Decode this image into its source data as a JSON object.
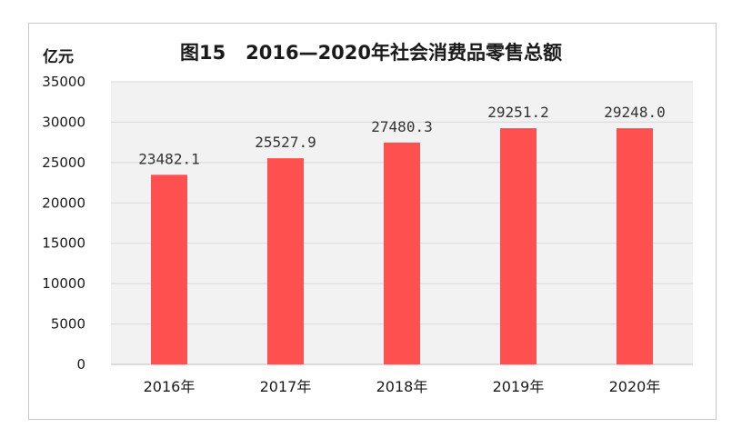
{
  "chart_data": {
    "type": "bar",
    "title": "图15   2016—2020年社会消费品零售总额",
    "unit_label": "亿元",
    "categories": [
      "2016年",
      "2017年",
      "2018年",
      "2019年",
      "2020年"
    ],
    "values": [
      23482.1,
      25527.9,
      27480.3,
      29251.2,
      29248.0
    ],
    "value_labels": [
      "23482.1",
      "25527.9",
      "27480.3",
      "29251.2",
      "29248.0"
    ],
    "y_ticks": [
      "0",
      "5000",
      "10000",
      "15000",
      "20000",
      "25000",
      "30000",
      "35000"
    ],
    "ylim": [
      0,
      35000
    ],
    "grid": true,
    "legend": "none",
    "bar_color": "#ff5050",
    "plot_background": "#f2f2f2",
    "grid_color": "#d9d9d9"
  }
}
